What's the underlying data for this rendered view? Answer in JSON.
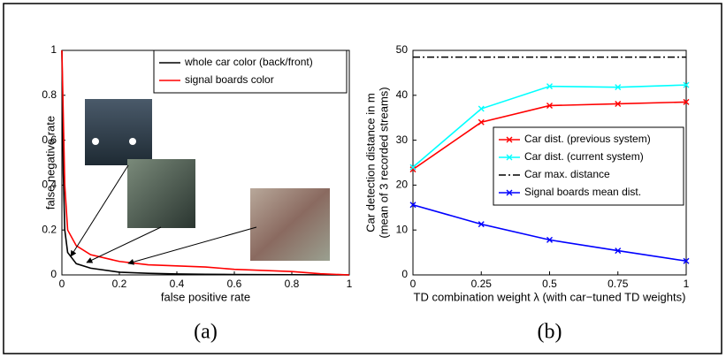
{
  "chart_data": [
    {
      "type": "line",
      "caption": "(a)",
      "xlabel": "false positive rate",
      "ylabel": "false negative rate",
      "x": [
        0,
        0.005,
        0.01,
        0.02,
        0.05,
        0.1,
        0.2,
        0.3,
        0.4,
        0.5,
        0.6,
        0.8,
        0.9,
        1
      ],
      "series": [
        {
          "name": "whole car color (back/front)",
          "color": "#000000",
          "values": [
            1,
            0.45,
            0.2,
            0.1,
            0.05,
            0.03,
            0.012,
            0.007,
            0.004,
            0.003,
            0.002,
            0.001,
            0.0005,
            0
          ]
        },
        {
          "name": "signal boards color",
          "color": "#ff0000",
          "values": [
            1,
            0.7,
            0.4,
            0.2,
            0.13,
            0.09,
            0.06,
            0.045,
            0.04,
            0.035,
            0.025,
            0.015,
            0.005,
            0
          ]
        }
      ],
      "xlim": [
        0,
        1
      ],
      "xticks": [
        0,
        0.2,
        0.4,
        0.6,
        0.8,
        1
      ],
      "ylim": [
        0,
        1
      ],
      "yticks": [
        0,
        0.2,
        0.4,
        0.6,
        0.8,
        1
      ],
      "legend": "upper right"
    },
    {
      "type": "line",
      "caption": "(b)",
      "xlabel": "TD combination weight λ (with car−tuned TD weights)",
      "ylabel": [
        "Car detection distance in m",
        "(mean of 3 recorded streams)"
      ],
      "x": [
        0,
        0.25,
        0.5,
        0.75,
        1
      ],
      "series": [
        {
          "name": "Car dist. (previous system)",
          "color": "#ff0000",
          "marker": "x",
          "values": [
            23.5,
            34,
            37.7,
            38.1,
            38.5
          ]
        },
        {
          "name": "Car dist. (current system)",
          "color": "#00ffff",
          "marker": "x",
          "values": [
            24,
            37,
            42,
            41.8,
            42.3
          ]
        },
        {
          "name": "Car max. distance",
          "color": "#000000",
          "dash": "dashdot",
          "values": [
            48.5,
            48.5,
            48.5,
            48.5,
            48.5
          ]
        },
        {
          "name": "Signal boards mean dist.",
          "color": "#0000ff",
          "marker": "x",
          "values": [
            15.6,
            11.3,
            7.8,
            5.4,
            3.1
          ]
        }
      ],
      "xlim": [
        0,
        1
      ],
      "xticks": [
        0,
        0.25,
        0.5,
        0.75,
        1
      ],
      "ylim": [
        0,
        50
      ],
      "yticks": [
        0,
        10,
        20,
        30,
        40,
        50
      ],
      "legend": "center right"
    }
  ]
}
